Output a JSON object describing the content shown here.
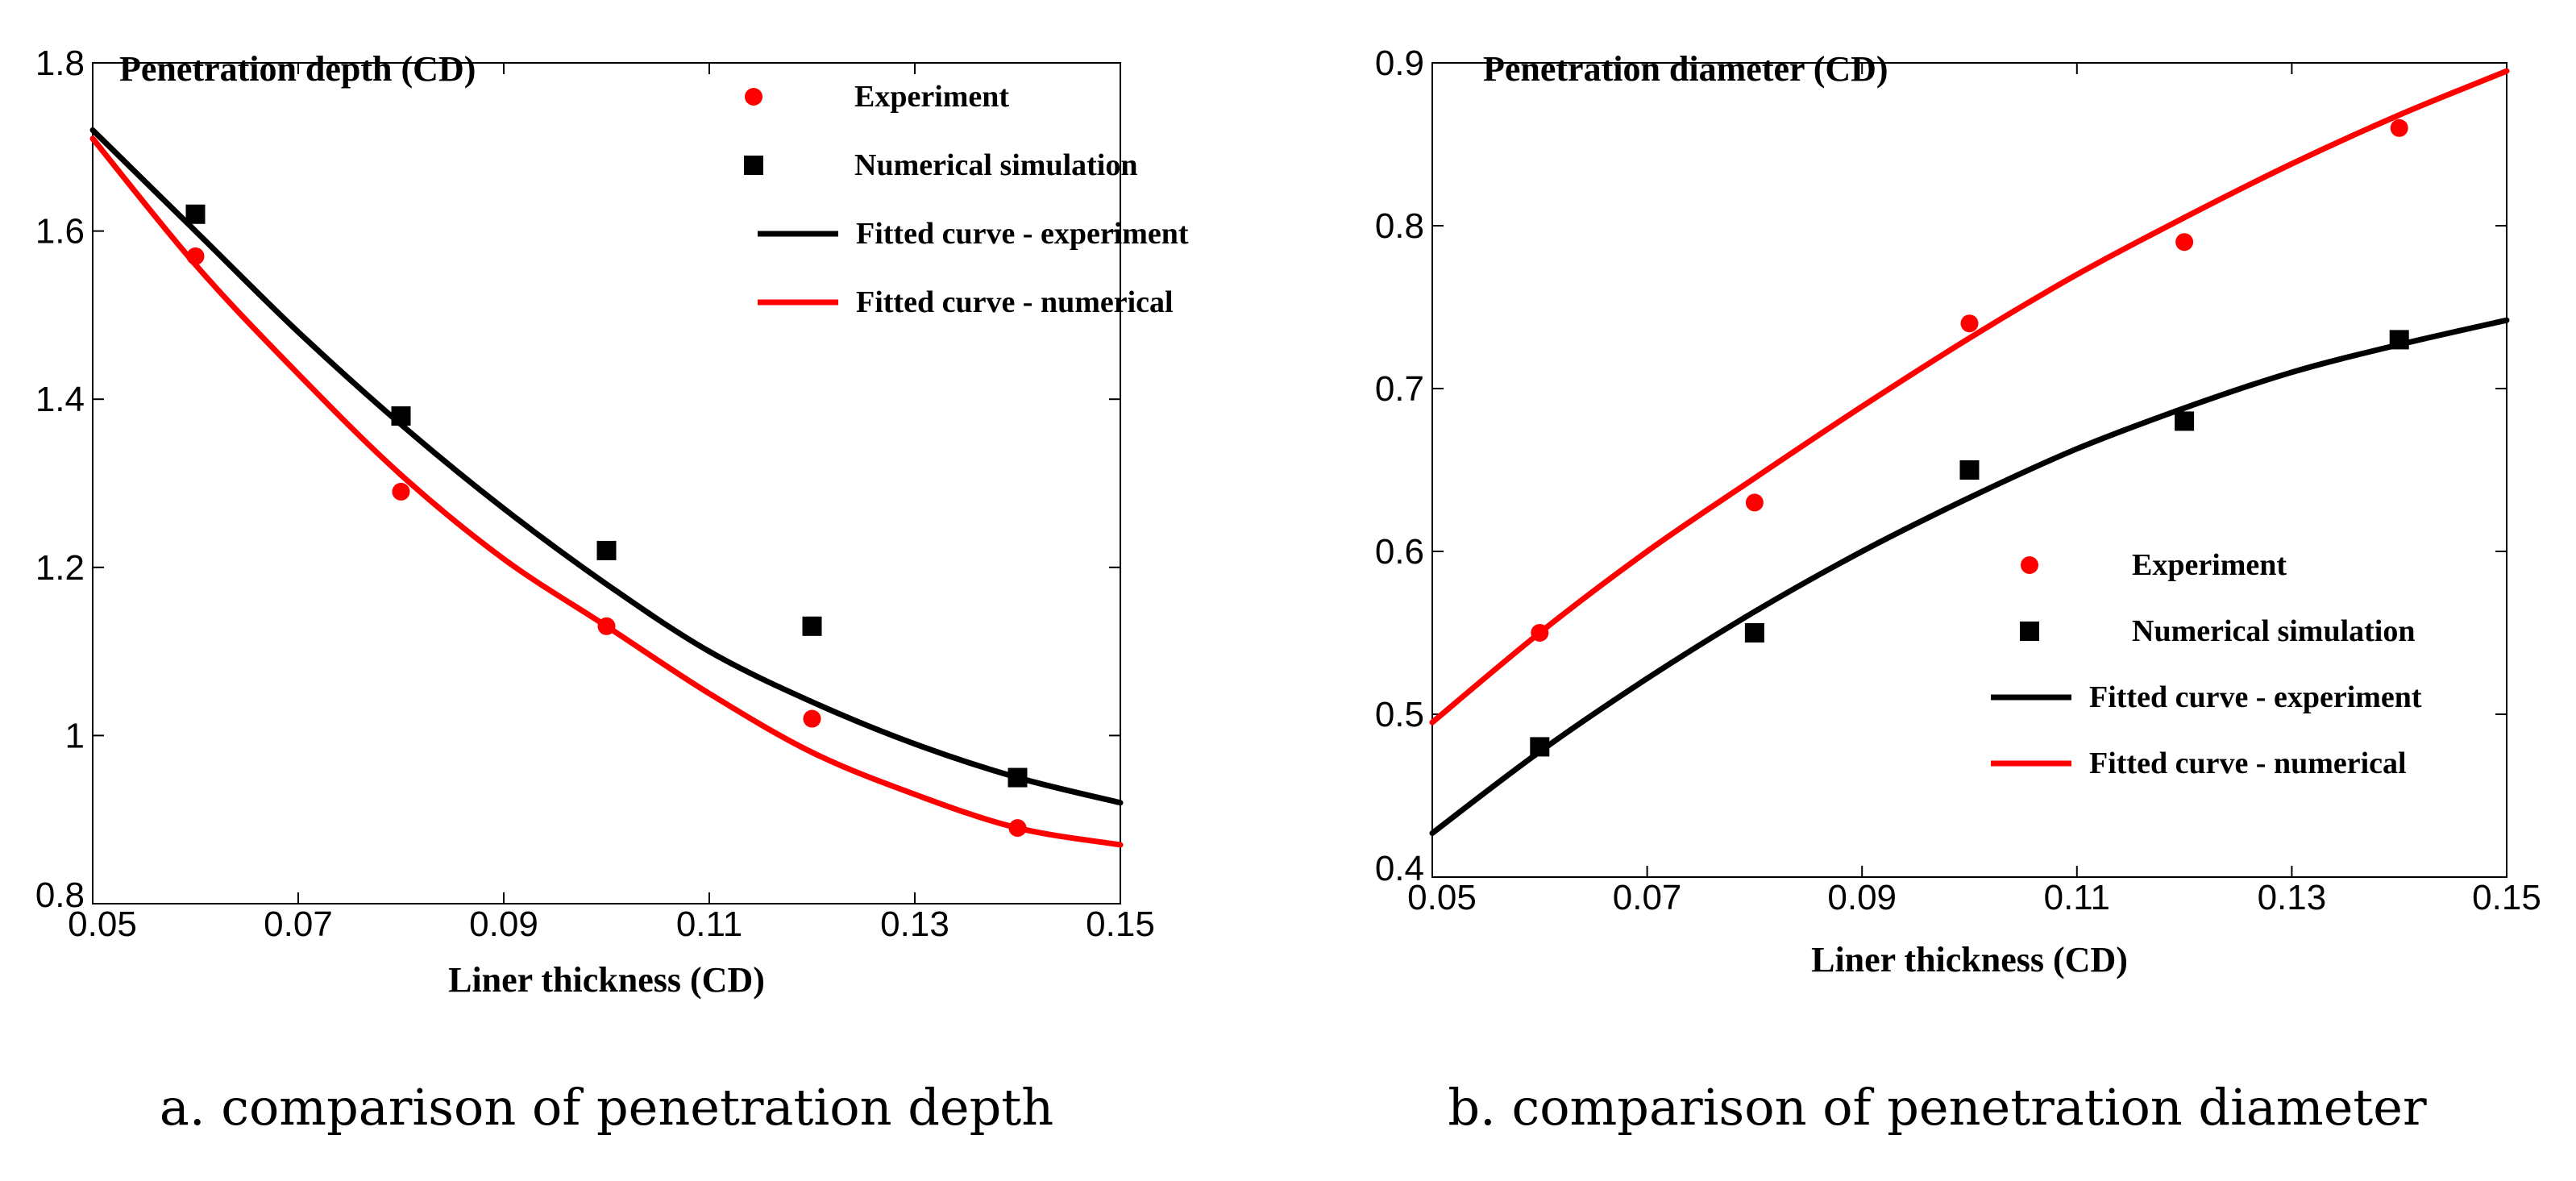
{
  "chart_data": [
    {
      "type": "scatter",
      "caption": "a. comparison of penetration depth",
      "title": "Penetration depth (CD)",
      "xlabel": "Liner thickness (CD)",
      "ylabel": "Penetration depth (CD)",
      "xlim": [
        0.05,
        0.15
      ],
      "ylim": [
        0.8,
        1.8
      ],
      "xticks": [
        0.05,
        0.07,
        0.09,
        0.11,
        0.13,
        0.15
      ],
      "xtick_labels": [
        "0.05",
        "0.07",
        "0.09",
        "0.11",
        "0.13",
        "0.15"
      ],
      "yticks": [
        0.8,
        1.0,
        1.2,
        1.4,
        1.6,
        1.8
      ],
      "ytick_labels": [
        "0.8",
        "1",
        "1.2",
        "1.4",
        "1.6",
        "1.8"
      ],
      "grid": false,
      "legend_position": "top-right",
      "series": [
        {
          "name": "Experiment",
          "kind": "points",
          "marker": "circle",
          "color": "#ff0000",
          "x": [
            0.06,
            0.08,
            0.1,
            0.12,
            0.14
          ],
          "y": [
            1.57,
            1.29,
            1.13,
            1.02,
            0.89
          ]
        },
        {
          "name": "Numerical simulation",
          "kind": "points",
          "marker": "square",
          "color": "#000000",
          "x": [
            0.06,
            0.08,
            0.1,
            0.12,
            0.14
          ],
          "y": [
            1.62,
            1.38,
            1.22,
            1.13,
            0.95
          ]
        },
        {
          "name": "Fitted curve - experiment",
          "kind": "line",
          "color": "#000000",
          "x": [
            0.05,
            0.06,
            0.07,
            0.08,
            0.09,
            0.1,
            0.11,
            0.12,
            0.13,
            0.14,
            0.15
          ],
          "y": [
            1.72,
            1.6,
            1.48,
            1.37,
            1.27,
            1.18,
            1.1,
            1.04,
            0.99,
            0.95,
            0.92
          ]
        },
        {
          "name": "Fitted curve - numerical",
          "kind": "line",
          "color": "#ff0000",
          "x": [
            0.05,
            0.06,
            0.07,
            0.08,
            0.09,
            0.1,
            0.11,
            0.12,
            0.13,
            0.14,
            0.15
          ],
          "y": [
            1.71,
            1.56,
            1.43,
            1.31,
            1.21,
            1.13,
            1.05,
            0.98,
            0.93,
            0.89,
            0.87
          ]
        }
      ]
    },
    {
      "type": "scatter",
      "caption": "b. comparison of penetration diameter",
      "title": "Penetration diameter (CD)",
      "xlabel": "Liner thickness (CD)",
      "ylabel": "Penetration diameter (CD)",
      "xlim": [
        0.05,
        0.15
      ],
      "ylim": [
        0.4,
        0.9
      ],
      "xticks": [
        0.05,
        0.07,
        0.09,
        0.11,
        0.13,
        0.15
      ],
      "xtick_labels": [
        "0.05",
        "0.07",
        "0.09",
        "0.11",
        "0.13",
        "0.15"
      ],
      "yticks": [
        0.4,
        0.5,
        0.6,
        0.7,
        0.8,
        0.9
      ],
      "ytick_labels": [
        "0.4",
        "0.5",
        "0.6",
        "0.7",
        "0.8",
        "0.9"
      ],
      "grid": false,
      "legend_position": "center-right",
      "series": [
        {
          "name": "Experiment",
          "kind": "points",
          "marker": "circle",
          "color": "#ff0000",
          "x": [
            0.06,
            0.08,
            0.1,
            0.12,
            0.14
          ],
          "y": [
            0.55,
            0.63,
            0.74,
            0.79,
            0.86
          ]
        },
        {
          "name": "Numerical simulation",
          "kind": "points",
          "marker": "square",
          "color": "#000000",
          "x": [
            0.06,
            0.08,
            0.1,
            0.12,
            0.14
          ],
          "y": [
            0.48,
            0.55,
            0.65,
            0.68,
            0.73
          ]
        },
        {
          "name": "Fitted curve - experiment",
          "kind": "line",
          "color": "#000000",
          "x": [
            0.05,
            0.06,
            0.07,
            0.08,
            0.09,
            0.1,
            0.11,
            0.12,
            0.13,
            0.14,
            0.15
          ],
          "y": [
            0.427,
            0.477,
            0.522,
            0.563,
            0.6,
            0.633,
            0.663,
            0.688,
            0.71,
            0.727,
            0.742
          ]
        },
        {
          "name": "Fitted curve - numerical",
          "kind": "line",
          "color": "#ff0000",
          "x": [
            0.05,
            0.06,
            0.07,
            0.08,
            0.09,
            0.1,
            0.11,
            0.12,
            0.13,
            0.14,
            0.15
          ],
          "y": [
            0.495,
            0.55,
            0.6,
            0.645,
            0.689,
            0.731,
            0.77,
            0.805,
            0.838,
            0.868,
            0.895
          ]
        }
      ]
    }
  ]
}
